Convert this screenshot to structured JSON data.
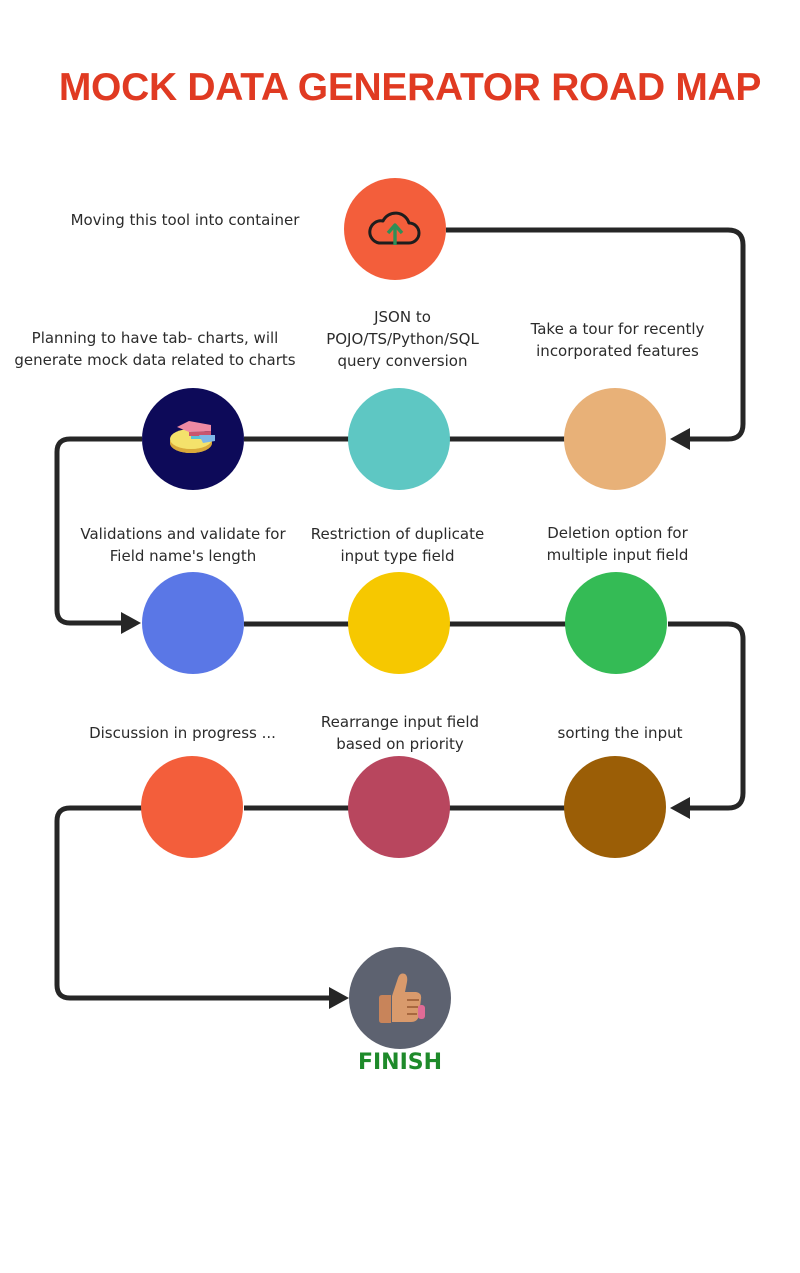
{
  "title": "MOCK DATA GENERATOR ROAD MAP",
  "finish_label": "FINISH",
  "steps": [
    {
      "label": "Moving this tool into container",
      "color": "#f35e3b",
      "icon": "cloud-upload-icon"
    },
    {
      "label": "Take a tour for recently\nincorporated features",
      "color": "#e8b178"
    },
    {
      "label": "JSON to\nPOJO/TS/Python/SQL\nquery conversion",
      "color": "#5ec7c3"
    },
    {
      "label": "Planning to have tab- charts, will\ngenerate mock data related to charts",
      "color": "#0d0a59",
      "icon": "pie-chart-icon"
    },
    {
      "label": "Validations and validate for\nField name's length",
      "color": "#5a77e6"
    },
    {
      "label": "Restriction of duplicate\ninput type field",
      "color": "#f6c800"
    },
    {
      "label": "Deletion option for\nmultiple input field",
      "color": "#34bb55"
    },
    {
      "label": "sorting the input",
      "color": "#9b5e06"
    },
    {
      "label": "Rearrange input field\nbased on priority",
      "color": "#b8465e"
    },
    {
      "label": "Discussion in progress ...",
      "color": "#f35e3b"
    }
  ],
  "finish_node": {
    "color": "#5d6270",
    "icon": "thumbs-up-icon"
  },
  "connector_color": "#262626"
}
